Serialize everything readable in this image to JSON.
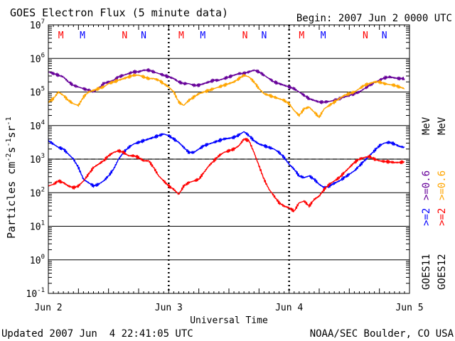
{
  "chart_data": {
    "type": "line",
    "title": "GOES Electron Flux (5 minute data)",
    "begin_label": "Begin: 2007 Jun 2 0000 UTC",
    "xlabel": "Universal Time",
    "ylabel_main": "Particles cm",
    "ylabel_exp1": "-2",
    "ylabel_mid1": "s",
    "ylabel_exp2": "-1",
    "ylabel_mid2": "sr",
    "ylabel_exp3": "-1",
    "x_range_hours": [
      0,
      72
    ],
    "y_range_log10": [
      -1,
      7
    ],
    "x_ticks": [
      {
        "hour": 0,
        "label": "Jun 2"
      },
      {
        "hour": 24,
        "label": "Jun 3"
      },
      {
        "hour": 48,
        "label": "Jun 4"
      },
      {
        "hour": 72,
        "label": "Jun 5"
      }
    ],
    "y_ticks": [
      {
        "exp": 7,
        "base": "10",
        "sup": "7"
      },
      {
        "exp": 6,
        "base": "10",
        "sup": "6"
      },
      {
        "exp": 5,
        "base": "10",
        "sup": "5"
      },
      {
        "exp": 4,
        "base": "10",
        "sup": "4"
      },
      {
        "exp": 3,
        "base": "10",
        "sup": "3"
      },
      {
        "exp": 2,
        "base": "10",
        "sup": "2"
      },
      {
        "exp": 1,
        "base": "10",
        "sup": "1"
      },
      {
        "exp": 0,
        "base": "10",
        "sup": "0"
      },
      {
        "exp": -1,
        "base": "10",
        "sup": "-1"
      }
    ],
    "threshold_log10": 3,
    "mn_markers": [
      {
        "hour": 2.5,
        "text": "M",
        "color": "#ff0000"
      },
      {
        "hour": 6.8,
        "text": "M",
        "color": "#0000ff"
      },
      {
        "hour": 15.2,
        "text": "N",
        "color": "#ff0000"
      },
      {
        "hour": 19.0,
        "text": "N",
        "color": "#0000ff"
      },
      {
        "hour": 26.5,
        "text": "M",
        "color": "#ff0000"
      },
      {
        "hour": 30.8,
        "text": "M",
        "color": "#0000ff"
      },
      {
        "hour": 39.2,
        "text": "N",
        "color": "#ff0000"
      },
      {
        "hour": 43.0,
        "text": "N",
        "color": "#0000ff"
      },
      {
        "hour": 50.5,
        "text": "M",
        "color": "#ff0000"
      },
      {
        "hour": 54.8,
        "text": "M",
        "color": "#0000ff"
      },
      {
        "hour": 63.2,
        "text": "N",
        "color": "#ff0000"
      },
      {
        "hour": 67.0,
        "text": "N",
        "color": "#0000ff"
      }
    ],
    "legend": [
      {
        "text": "GOES11",
        "color": "#000000"
      },
      {
        "text": "GOES12",
        "color": "#000000"
      },
      {
        "text": ">=2",
        "color": "#0000ff"
      },
      {
        "text": ">=2",
        "color": "#ff0000"
      },
      {
        "text": ">=0.6",
        "color": "#660099"
      },
      {
        "text": ">=0.6",
        "color": "#ffa500"
      },
      {
        "text": "MeV",
        "color": "#000000"
      },
      {
        "text": "MeV",
        "color": "#000000"
      }
    ],
    "series": [
      {
        "name": "GOES11 >=0.6 MeV",
        "color": "#660099",
        "x": [
          0,
          1,
          2,
          3,
          4,
          5,
          6,
          7,
          8,
          9,
          10,
          11,
          12,
          13,
          14,
          15,
          16,
          17,
          18,
          19,
          20,
          21,
          22,
          23,
          24,
          25,
          26,
          27,
          28,
          29,
          30,
          31,
          32,
          33,
          34,
          35,
          36,
          37,
          38,
          39,
          40,
          41,
          42,
          43,
          44,
          45,
          46,
          47,
          48,
          49,
          50,
          51,
          52,
          53,
          54,
          55,
          56,
          57,
          58,
          59,
          60,
          61,
          62,
          63,
          64,
          65,
          66,
          67,
          68,
          69,
          70,
          71
        ],
        "log10": [
          5.6,
          5.55,
          5.5,
          5.45,
          5.3,
          5.2,
          5.15,
          5.1,
          5.05,
          5.0,
          5.1,
          5.25,
          5.3,
          5.35,
          5.45,
          5.5,
          5.55,
          5.6,
          5.6,
          5.65,
          5.65,
          5.6,
          5.55,
          5.5,
          5.45,
          5.4,
          5.3,
          5.25,
          5.25,
          5.2,
          5.2,
          5.25,
          5.3,
          5.35,
          5.35,
          5.4,
          5.45,
          5.5,
          5.55,
          5.55,
          5.6,
          5.65,
          5.6,
          5.5,
          5.4,
          5.3,
          5.25,
          5.2,
          5.15,
          5.1,
          5.0,
          4.9,
          4.8,
          4.75,
          4.7,
          4.7,
          4.72,
          4.75,
          4.8,
          4.85,
          4.9,
          4.95,
          5.0,
          5.1,
          5.2,
          5.28,
          5.35,
          5.42,
          5.45,
          5.42,
          5.4,
          5.4
        ]
      },
      {
        "name": "GOES12 >=0.6 MeV",
        "color": "#ffa500",
        "x": [
          0,
          1,
          2,
          3,
          4,
          5,
          6,
          7,
          8,
          9,
          10,
          11,
          12,
          13,
          14,
          15,
          16,
          17,
          18,
          19,
          20,
          21,
          22,
          23,
          24,
          25,
          26,
          27,
          28,
          29,
          30,
          31,
          32,
          33,
          34,
          35,
          36,
          37,
          38,
          39,
          40,
          41,
          42,
          43,
          44,
          45,
          46,
          47,
          48,
          49,
          50,
          51,
          52,
          53,
          54,
          55,
          56,
          57,
          58,
          59,
          60,
          61,
          62,
          63,
          64,
          65,
          66,
          67,
          68,
          69,
          70,
          71
        ],
        "log10": [
          4.7,
          4.8,
          5.0,
          4.9,
          4.75,
          4.65,
          4.6,
          4.85,
          5.0,
          5.05,
          5.1,
          5.15,
          5.25,
          5.3,
          5.35,
          5.4,
          5.45,
          5.5,
          5.5,
          5.45,
          5.4,
          5.4,
          5.35,
          5.25,
          5.15,
          5.0,
          4.7,
          4.6,
          4.75,
          4.85,
          4.95,
          5.0,
          5.05,
          5.1,
          5.15,
          5.2,
          5.25,
          5.3,
          5.4,
          5.5,
          5.45,
          5.3,
          5.1,
          4.95,
          4.9,
          4.85,
          4.8,
          4.75,
          4.65,
          4.45,
          4.3,
          4.5,
          4.55,
          4.4,
          4.25,
          4.5,
          4.6,
          4.7,
          4.8,
          4.9,
          4.95,
          5.0,
          5.1,
          5.2,
          5.25,
          5.3,
          5.3,
          5.25,
          5.22,
          5.2,
          5.15,
          5.1
        ]
      },
      {
        "name": "GOES11 >=2 MeV",
        "color": "#0000ff",
        "x": [
          0,
          1,
          2,
          3,
          4,
          5,
          6,
          7,
          8,
          9,
          10,
          11,
          12,
          13,
          14,
          15,
          16,
          17,
          18,
          19,
          20,
          21,
          22,
          23,
          24,
          25,
          26,
          27,
          28,
          29,
          30,
          31,
          32,
          33,
          34,
          35,
          36,
          37,
          38,
          39,
          40,
          41,
          42,
          43,
          44,
          45,
          46,
          47,
          48,
          49,
          50,
          51,
          52,
          53,
          54,
          55,
          56,
          57,
          58,
          59,
          60,
          61,
          62,
          63,
          64,
          65,
          66,
          67,
          68,
          69,
          70,
          71
        ],
        "log10": [
          3.55,
          3.45,
          3.35,
          3.3,
          3.15,
          3.0,
          2.75,
          2.4,
          2.3,
          2.2,
          2.25,
          2.35,
          2.5,
          2.7,
          3.0,
          3.2,
          3.35,
          3.45,
          3.5,
          3.55,
          3.6,
          3.65,
          3.7,
          3.75,
          3.7,
          3.6,
          3.5,
          3.35,
          3.2,
          3.2,
          3.3,
          3.4,
          3.45,
          3.5,
          3.55,
          3.6,
          3.62,
          3.65,
          3.72,
          3.82,
          3.7,
          3.55,
          3.45,
          3.4,
          3.35,
          3.3,
          3.2,
          3.05,
          2.85,
          2.7,
          2.5,
          2.45,
          2.5,
          2.4,
          2.25,
          2.15,
          2.2,
          2.28,
          2.35,
          2.45,
          2.55,
          2.65,
          2.8,
          2.95,
          3.1,
          3.25,
          3.4,
          3.48,
          3.5,
          3.45,
          3.38,
          3.35
        ]
      },
      {
        "name": "GOES12 >=2 MeV",
        "color": "#ff0000",
        "x": [
          0,
          1,
          2,
          3,
          4,
          5,
          6,
          7,
          8,
          9,
          10,
          11,
          12,
          13,
          14,
          15,
          16,
          17,
          18,
          19,
          20,
          21,
          22,
          23,
          24,
          25,
          26,
          27,
          28,
          29,
          30,
          31,
          32,
          33,
          34,
          35,
          36,
          37,
          38,
          39,
          40,
          41,
          42,
          43,
          44,
          45,
          46,
          47,
          48,
          49,
          50,
          51,
          52,
          53,
          54,
          55,
          56,
          57,
          58,
          59,
          60,
          61,
          62,
          63,
          64,
          65,
          66,
          67,
          68,
          69,
          70,
          71
        ],
        "log10": [
          2.2,
          2.25,
          2.35,
          2.3,
          2.2,
          2.15,
          2.2,
          2.35,
          2.55,
          2.75,
          2.85,
          2.95,
          3.1,
          3.2,
          3.25,
          3.2,
          3.1,
          3.1,
          3.05,
          2.95,
          2.95,
          2.75,
          2.5,
          2.35,
          2.2,
          2.1,
          1.95,
          2.2,
          2.3,
          2.35,
          2.4,
          2.6,
          2.8,
          2.95,
          3.1,
          3.2,
          3.25,
          3.3,
          3.4,
          3.6,
          3.55,
          3.2,
          2.8,
          2.4,
          2.1,
          1.9,
          1.7,
          1.6,
          1.55,
          1.45,
          1.7,
          1.75,
          1.6,
          1.8,
          1.9,
          2.1,
          2.25,
          2.35,
          2.45,
          2.6,
          2.75,
          2.9,
          3.0,
          3.05,
          3.08,
          3.0,
          2.95,
          2.93,
          2.92,
          2.9,
          2.9,
          2.92
        ]
      }
    ]
  },
  "footer": {
    "updated": "Updated 2007 Jun  4 22:41:05 UTC",
    "source": "NOAA/SEC Boulder, CO USA"
  }
}
